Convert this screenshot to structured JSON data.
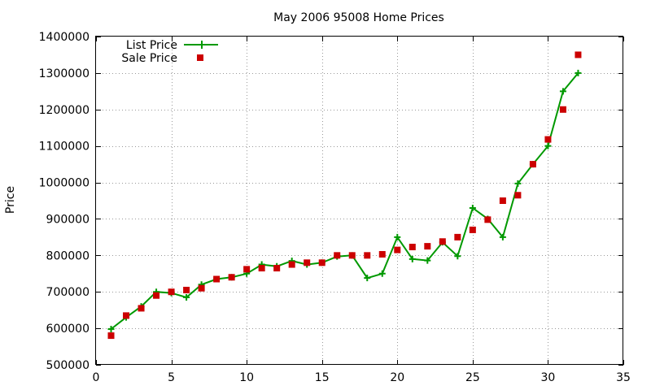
{
  "chart_data": {
    "type": "line",
    "title": "May 2006 95008 Home Prices",
    "xlabel": "",
    "ylabel": "Price",
    "xlim": [
      0,
      35
    ],
    "ylim": [
      500000,
      1400000
    ],
    "x_ticks": [
      0,
      5,
      10,
      15,
      20,
      25,
      30,
      35
    ],
    "y_ticks": [
      500000,
      600000,
      700000,
      800000,
      900000,
      1000000,
      1100000,
      1200000,
      1300000,
      1400000
    ],
    "grid": true,
    "legend_position": "top-left",
    "series": [
      {
        "name": "List Price",
        "style": "line-with-plus-markers",
        "color": "#009900",
        "x": [
          1,
          2,
          3,
          4,
          5,
          6,
          7,
          8,
          9,
          10,
          11,
          12,
          13,
          14,
          15,
          16,
          17,
          18,
          19,
          20,
          21,
          22,
          23,
          24,
          25,
          26,
          27,
          28,
          29,
          30,
          31,
          32
        ],
        "values": [
          598000,
          630000,
          660000,
          700000,
          697000,
          685000,
          720000,
          735000,
          740000,
          750000,
          775000,
          770000,
          785000,
          775000,
          780000,
          797000,
          800000,
          738000,
          750000,
          850000,
          790000,
          786000,
          836000,
          798000,
          930000,
          900000,
          850000,
          997000,
          1050000,
          1100000,
          1250000,
          1300000
        ]
      },
      {
        "name": "Sale Price",
        "style": "square-markers",
        "color": "#cc0000",
        "x": [
          1,
          2,
          3,
          4,
          5,
          6,
          7,
          8,
          9,
          10,
          11,
          12,
          13,
          14,
          15,
          16,
          17,
          18,
          19,
          20,
          21,
          22,
          23,
          24,
          25,
          26,
          27,
          28,
          29,
          30,
          31,
          32
        ],
        "values": [
          580000,
          635000,
          655000,
          690000,
          700000,
          705000,
          710000,
          735000,
          740000,
          762000,
          765000,
          765000,
          775000,
          780000,
          780000,
          800000,
          800000,
          800000,
          803000,
          815000,
          823000,
          825000,
          838000,
          850000,
          870000,
          898000,
          950000,
          965000,
          1050000,
          1118000,
          1200000,
          1350000
        ]
      }
    ]
  }
}
